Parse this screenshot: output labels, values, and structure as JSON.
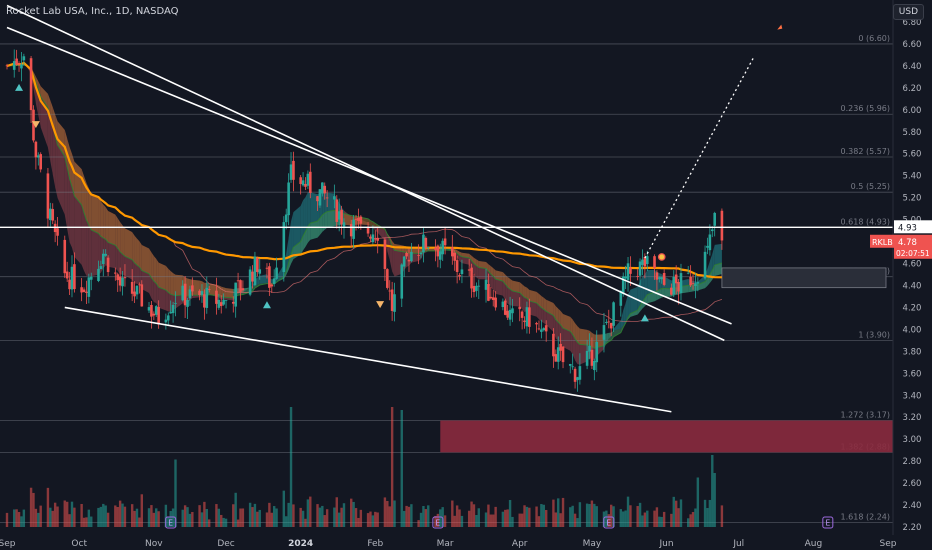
{
  "header": {
    "title": "Rocket Lab USA, Inc., 1D, NASDAQ"
  },
  "toolbar": {
    "currency": "USD"
  },
  "price_tag": {
    "symbol": "RKLB",
    "price": "4.78",
    "countdown": "02:07:51",
    "line_label": "4.93"
  },
  "colors": {
    "background": "#131722",
    "up": "#26a69a",
    "down": "#ef5350",
    "ma_orange": "#ff9800",
    "line_white": "#ffffff",
    "fill_red": "#8b2a3e"
  },
  "chart_data": {
    "type": "candlestick",
    "title": "Rocket Lab USA, Inc., 1D, NASDAQ",
    "x_range": [
      "2023-09-01",
      "2024-09-01"
    ],
    "y_range": [
      2.2,
      6.8
    ],
    "x_ticks": [
      "Sep",
      "Oct",
      "Nov",
      "Dec",
      "2024",
      "Feb",
      "Mar",
      "Apr",
      "May",
      "Jun",
      "Jul",
      "Aug",
      "Sep"
    ],
    "y_ticks": [
      "6.80",
      "6.60",
      "6.40",
      "6.20",
      "6.00",
      "5.80",
      "5.60",
      "5.40",
      "5.20",
      "5.00",
      "4.80",
      "4.60",
      "4.40",
      "4.20",
      "4.00",
      "3.80",
      "3.60",
      "3.40",
      "3.20",
      "3.00",
      "2.80",
      "2.60",
      "2.40",
      "2.20"
    ],
    "fib_levels": [
      {
        "label": "0 (6.60)",
        "value": 6.6
      },
      {
        "label": "0.236 (5.96)",
        "value": 5.96
      },
      {
        "label": "0.382 (5.57)",
        "value": 5.57
      },
      {
        "label": "0.5 (5.25)",
        "value": 5.25
      },
      {
        "label": "0.618 (4.93)",
        "value": 4.93
      },
      {
        "label": "0.786 (4.48)",
        "value": 4.48
      },
      {
        "label": "1 (3.90)",
        "value": 3.9
      },
      {
        "label": "1.272 (3.17)",
        "value": 3.17
      },
      {
        "label": "1.382 (2.88)",
        "value": 2.88
      },
      {
        "label": "1.618 (2.24)",
        "value": 2.24
      }
    ],
    "horizontal_line": 4.93,
    "last_price": 4.78,
    "path": [
      [
        "2023-09-01",
        6.4
      ],
      [
        "2023-09-08",
        6.5
      ],
      [
        "2023-09-13",
        5.6
      ],
      [
        "2023-09-19",
        5.0
      ],
      [
        "2023-09-25",
        4.5
      ],
      [
        "2023-10-03",
        4.4
      ],
      [
        "2023-10-11",
        4.7
      ],
      [
        "2023-10-18",
        4.4
      ],
      [
        "2023-10-26",
        4.3
      ],
      [
        "2023-11-03",
        4.1
      ],
      [
        "2023-11-10",
        4.3
      ],
      [
        "2023-11-20",
        4.3
      ],
      [
        "2023-11-30",
        4.25
      ],
      [
        "2023-12-08",
        4.4
      ],
      [
        "2023-12-14",
        4.6
      ],
      [
        "2023-12-20",
        4.4
      ],
      [
        "2023-12-28",
        5.4
      ],
      [
        "2024-01-05",
        5.3
      ],
      [
        "2024-01-12",
        5.2
      ],
      [
        "2024-01-19",
        5.0
      ],
      [
        "2024-01-26",
        4.9
      ],
      [
        "2024-02-02",
        4.9
      ],
      [
        "2024-02-08",
        4.2
      ],
      [
        "2024-02-15",
        4.7
      ],
      [
        "2024-02-23",
        4.8
      ],
      [
        "2024-03-01",
        4.7
      ],
      [
        "2024-03-08",
        4.5
      ],
      [
        "2024-03-15",
        4.4
      ],
      [
        "2024-03-22",
        4.3
      ],
      [
        "2024-03-29",
        4.1
      ],
      [
        "2024-04-05",
        4.1
      ],
      [
        "2024-04-12",
        3.9
      ],
      [
        "2024-04-19",
        3.7
      ],
      [
        "2024-04-25",
        3.6
      ],
      [
        "2024-05-02",
        3.8
      ],
      [
        "2024-05-09",
        4.1
      ],
      [
        "2024-05-16",
        4.5
      ],
      [
        "2024-05-23",
        4.6
      ],
      [
        "2024-05-30",
        4.4
      ],
      [
        "2024-06-06",
        4.4
      ],
      [
        "2024-06-13",
        4.5
      ],
      [
        "2024-06-18",
        4.7
      ],
      [
        "2024-06-21",
        5.0
      ],
      [
        "2024-06-24",
        4.78
      ]
    ]
  }
}
